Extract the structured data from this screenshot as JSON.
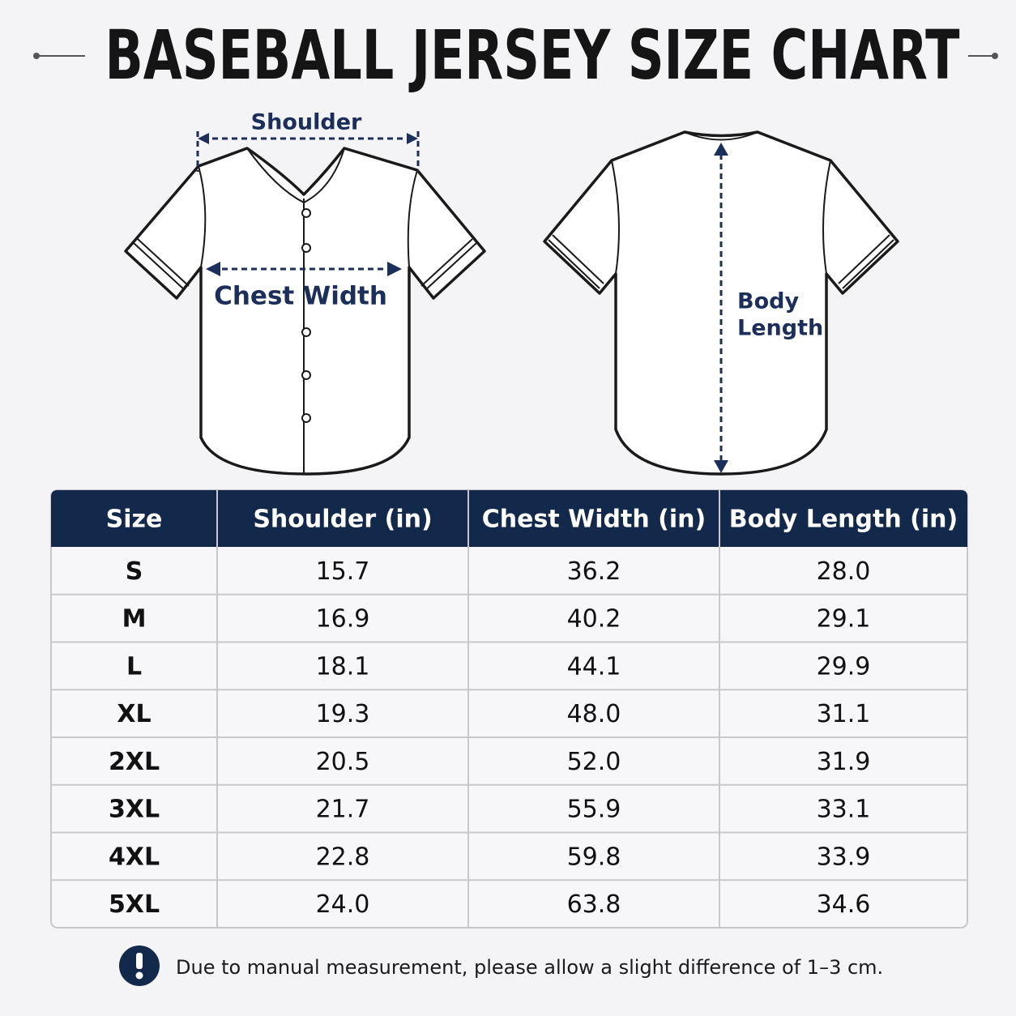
{
  "header": {
    "title": "BASEBALL JERSEY SIZE CHART"
  },
  "diagram": {
    "shoulder": "Shoulder",
    "chest_width": "Chest Width",
    "body_length": [
      "Body",
      "Length"
    ]
  },
  "table": {
    "columns": [
      "Size",
      "Shoulder (in)",
      "Chest Width (in)",
      "Body Length (in)"
    ],
    "rows": [
      [
        "S",
        "15.7",
        "36.2",
        "28.0"
      ],
      [
        "M",
        "16.9",
        "40.2",
        "29.1"
      ],
      [
        "L",
        "18.1",
        "44.1",
        "29.9"
      ],
      [
        "XL",
        "19.3",
        "48.0",
        "31.1"
      ],
      [
        "2XL",
        "20.5",
        "52.0",
        "31.9"
      ],
      [
        "3XL",
        "21.7",
        "55.9",
        "33.1"
      ],
      [
        "4XL",
        "22.8",
        "59.8",
        "33.9"
      ],
      [
        "5XL",
        "24.0",
        "63.8",
        "34.6"
      ]
    ]
  },
  "note": "Due to manual measurement, please allow a slight difference of 1–3 cm."
}
